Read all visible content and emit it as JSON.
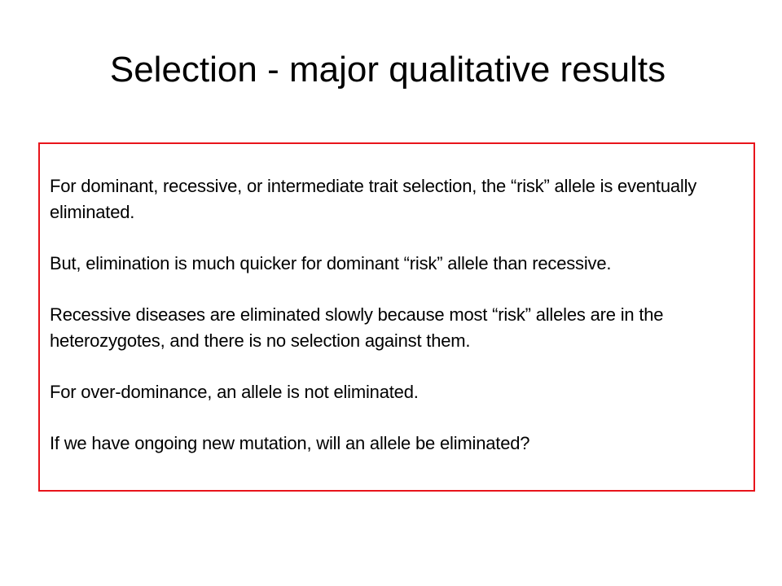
{
  "slide": {
    "title": "Selection - major qualitative results",
    "box_border_color": "#e8141b",
    "paragraphs": [
      "For dominant, recessive, or intermediate trait selection, the “risk” allele is eventually eliminated.",
      "But, elimination is much quicker for dominant “risk” allele than recessive.",
      "Recessive diseases are eliminated slowly because most “risk” alleles are in the heterozygotes, and there is no selection against them.",
      "For over-dominance, an allele is not eliminated.",
      "If we have ongoing new mutation, will an allele be eliminated?"
    ]
  }
}
